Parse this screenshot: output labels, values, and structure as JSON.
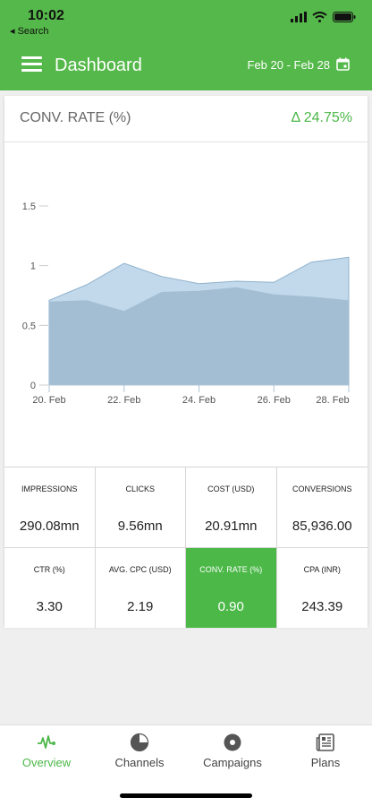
{
  "status": {
    "time": "10:02",
    "back_label": "◂ Search"
  },
  "header": {
    "title": "Dashboard",
    "date_range": "Feb 20 - Feb 28"
  },
  "metric": {
    "title": "CONV. RATE (%)",
    "delta": "Δ 24.75%"
  },
  "chart_data": {
    "type": "area",
    "x": [
      "20. Feb",
      "21. Feb",
      "22. Feb",
      "23. Feb",
      "24. Feb",
      "25. Feb",
      "26. Feb",
      "27. Feb",
      "28. Feb"
    ],
    "x_tick_labels": [
      "20. Feb",
      "22. Feb",
      "24. Feb",
      "26. Feb",
      "28. Feb"
    ],
    "y_tick_labels": [
      "0",
      "0.5",
      "1",
      "1.5"
    ],
    "ylim": [
      0,
      1.5
    ],
    "series": [
      {
        "values": [
          0.71,
          0.84,
          1.02,
          0.91,
          0.85,
          0.87,
          0.86,
          1.03,
          1.07
        ],
        "color": "#c2d8eb"
      },
      {
        "values": [
          0.7,
          0.71,
          0.62,
          0.78,
          0.79,
          0.82,
          0.76,
          0.74,
          0.71
        ],
        "color": "#a3bed3"
      }
    ],
    "grid": false
  },
  "stats": [
    [
      {
        "label": "IMPRESSIONS",
        "value": "290.08mn"
      },
      {
        "label": "CLICKS",
        "value": "9.56mn"
      },
      {
        "label": "COST (USD)",
        "value": "20.91mn"
      },
      {
        "label": "CONVERSIONS",
        "value": "85,936.00"
      }
    ],
    [
      {
        "label": "CTR (%)",
        "value": "3.30"
      },
      {
        "label": "AVG. CPC (USD)",
        "value": "2.19"
      },
      {
        "label": "CONV. RATE (%)",
        "value": "0.90"
      },
      {
        "label": "CPA (INR)",
        "value": "243.39"
      }
    ]
  ],
  "tabs": [
    {
      "label": "Overview",
      "icon": "pulse-icon"
    },
    {
      "label": "Channels",
      "icon": "pie-chart-icon"
    },
    {
      "label": "Campaigns",
      "icon": "disc-icon"
    },
    {
      "label": "Plans",
      "icon": "newspaper-icon"
    }
  ],
  "colors": {
    "brand": "#55b84a",
    "active_tab": "#4cb748",
    "active_cell": "#4bb848"
  }
}
